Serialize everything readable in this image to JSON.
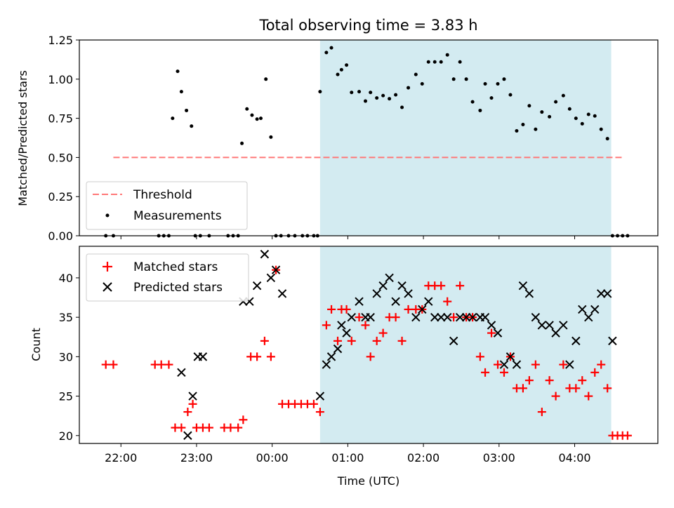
{
  "title": "Total observing time = 3.83 h",
  "chart_data": [
    {
      "type": "scatter",
      "ylabel": "Matched/Predicted stars",
      "xlim": [
        "21:27",
        "05:06"
      ],
      "ylim": [
        0,
        1.25
      ],
      "yticks": [
        "0.00",
        "0.25",
        "0.50",
        "0.75",
        "1.00",
        "1.25"
      ],
      "xticks": [],
      "shaded_region": {
        "start": "00:38",
        "end": "04:29",
        "color": "#d3ebf1"
      },
      "legend": {
        "placement": "lower-left",
        "entries": [
          {
            "label": "Threshold",
            "style": "dashed-line",
            "color": "#ff7777"
          },
          {
            "label": "Measurements",
            "style": "dot",
            "color": "#000000"
          }
        ]
      },
      "threshold": {
        "label": "Threshold",
        "y": 0.5,
        "x_start": "21:54",
        "x_end": "04:38",
        "color": "#ff7777"
      },
      "measurements": {
        "label": "Measurements",
        "x": [
          "21:48",
          "21:54",
          "22:30",
          "22:34",
          "22:38",
          "22:41",
          "22:45",
          "22:48",
          "22:52",
          "22:56",
          "22:59",
          "23:03",
          "23:10",
          "23:25",
          "23:29",
          "23:33",
          "23:36",
          "23:40",
          "23:44",
          "23:48",
          "23:51",
          "23:55",
          "23:59",
          "00:03",
          "00:07",
          "00:13",
          "00:18",
          "00:24",
          "00:28",
          "00:33",
          "00:36",
          "00:38",
          "00:43",
          "00:47",
          "00:52",
          "00:55",
          "00:59",
          "01:03",
          "01:09",
          "01:14",
          "01:18",
          "01:23",
          "01:28",
          "01:33",
          "01:38",
          "01:43",
          "01:48",
          "01:54",
          "01:59",
          "02:04",
          "02:09",
          "02:14",
          "02:19",
          "02:24",
          "02:29",
          "02:34",
          "02:39",
          "02:45",
          "02:49",
          "02:54",
          "02:59",
          "03:04",
          "03:09",
          "03:14",
          "03:19",
          "03:24",
          "03:29",
          "03:34",
          "03:40",
          "03:45",
          "03:51",
          "03:56",
          "04:01",
          "04:06",
          "04:11",
          "04:16",
          "04:21",
          "04:26",
          "04:30",
          "04:34",
          "04:38",
          "04:42"
        ],
        "y": [
          0,
          0,
          0,
          0,
          0,
          0.75,
          1.05,
          0.92,
          0.8,
          0.7,
          0,
          0,
          0,
          0,
          0,
          0,
          0.59,
          0.81,
          0.77,
          0.745,
          0.75,
          1.0,
          0.63,
          0,
          0,
          0,
          0,
          0,
          0,
          0,
          0,
          0.92,
          1.17,
          1.2,
          1.03,
          1.06,
          1.09,
          0.915,
          0.92,
          0.86,
          0.915,
          0.88,
          0.895,
          0.875,
          0.9,
          0.82,
          0.945,
          1.03,
          0.97,
          1.11,
          1.11,
          1.11,
          1.155,
          1.0,
          1.11,
          1.0,
          0.855,
          0.8,
          0.97,
          0.88,
          0.97,
          1.0,
          0.9,
          0.67,
          0.71,
          0.83,
          0.68,
          0.79,
          0.76,
          0.855,
          0.895,
          0.81,
          0.75,
          0.715,
          0.775,
          0.765,
          0.68,
          0.62,
          0,
          0,
          0,
          0
        ]
      }
    },
    {
      "type": "scatter",
      "xlabel": "Time (UTC)",
      "ylabel": "Count",
      "xlim": [
        "21:27",
        "05:06"
      ],
      "ylim": [
        19,
        44
      ],
      "xticks": [
        "22:00",
        "23:00",
        "00:00",
        "01:00",
        "02:00",
        "03:00",
        "04:00"
      ],
      "yticks": [
        "20",
        "25",
        "30",
        "35",
        "40"
      ],
      "shaded_region": {
        "start": "00:38",
        "end": "04:29",
        "color": "#d3ebf1"
      },
      "legend": {
        "placement": "upper-left",
        "entries": [
          {
            "label": "Matched stars",
            "style": "plus",
            "color": "#ff0000"
          },
          {
            "label": "Predicted stars",
            "style": "x",
            "color": "#000000"
          }
        ]
      },
      "series": [
        {
          "name": "Matched stars",
          "color": "#ff0000",
          "marker": "plus",
          "x": [
            "21:48",
            "21:54",
            "22:27",
            "22:32",
            "22:38",
            "22:43",
            "22:48",
            "22:53",
            "22:57",
            "23:00",
            "23:05",
            "23:10",
            "23:22",
            "23:27",
            "23:33",
            "23:37",
            "23:43",
            "23:48",
            "23:54",
            "23:59",
            "00:03",
            "00:08",
            "00:13",
            "00:18",
            "00:23",
            "00:28",
            "00:33",
            "00:38",
            "00:43",
            "00:47",
            "00:52",
            "00:55",
            "00:59",
            "01:03",
            "01:09",
            "01:14",
            "01:18",
            "01:23",
            "01:28",
            "01:33",
            "01:38",
            "01:43",
            "01:48",
            "01:54",
            "01:59",
            "02:04",
            "02:09",
            "02:14",
            "02:19",
            "02:24",
            "02:29",
            "02:34",
            "02:39",
            "02:45",
            "02:49",
            "02:54",
            "02:59",
            "03:04",
            "03:09",
            "03:14",
            "03:19",
            "03:24",
            "03:29",
            "03:34",
            "03:40",
            "03:45",
            "03:51",
            "03:56",
            "04:01",
            "04:06",
            "04:11",
            "04:16",
            "04:21",
            "04:26",
            "04:30",
            "04:34",
            "04:38",
            "04:42"
          ],
          "y": [
            29,
            29,
            29,
            29,
            29,
            21,
            21,
            23,
            24,
            21,
            21,
            21,
            21,
            21,
            21,
            22,
            30,
            30,
            32,
            30,
            41,
            24,
            24,
            24,
            24,
            24,
            24,
            23,
            34,
            36,
            32,
            36,
            36,
            32,
            35,
            34,
            30,
            32,
            33,
            35,
            35,
            32,
            36,
            36,
            36,
            39,
            39,
            39,
            37,
            35,
            39,
            35,
            35,
            30,
            28,
            33,
            29,
            28,
            30,
            26,
            26,
            27,
            29,
            23,
            27,
            25,
            29,
            26,
            26,
            27,
            25,
            28,
            29,
            26,
            20,
            20,
            20,
            20
          ]
        },
        {
          "name": "Predicted stars",
          "color": "#000000",
          "marker": "x",
          "x": [
            "22:48",
            "22:53",
            "22:57",
            "23:01",
            "23:05",
            "23:37",
            "23:42",
            "23:48",
            "23:54",
            "23:59",
            "00:03",
            "00:08",
            "00:38",
            "00:43",
            "00:47",
            "00:52",
            "00:55",
            "00:59",
            "01:03",
            "01:09",
            "01:14",
            "01:18",
            "01:23",
            "01:28",
            "01:33",
            "01:38",
            "01:43",
            "01:48",
            "01:54",
            "01:59",
            "02:04",
            "02:09",
            "02:14",
            "02:19",
            "02:24",
            "02:29",
            "02:34",
            "02:39",
            "02:45",
            "02:49",
            "02:54",
            "02:59",
            "03:04",
            "03:09",
            "03:14",
            "03:19",
            "03:24",
            "03:29",
            "03:34",
            "03:40",
            "03:45",
            "03:51",
            "03:56",
            "04:01",
            "04:06",
            "04:11",
            "04:16",
            "04:21",
            "04:26",
            "04:30"
          ],
          "y": [
            28,
            20,
            25,
            30,
            30,
            37,
            37,
            39,
            43,
            40,
            41,
            38,
            25,
            29,
            30,
            31,
            34,
            33,
            35,
            37,
            35,
            35,
            38,
            39,
            40,
            37,
            39,
            38,
            35,
            36,
            37,
            35,
            35,
            35,
            32,
            35,
            35,
            35,
            35,
            35,
            34,
            33,
            29,
            30,
            29,
            39,
            38,
            35,
            34,
            34,
            33,
            34,
            29,
            32,
            36,
            35,
            36,
            38,
            38,
            32
          ]
        }
      ]
    }
  ]
}
